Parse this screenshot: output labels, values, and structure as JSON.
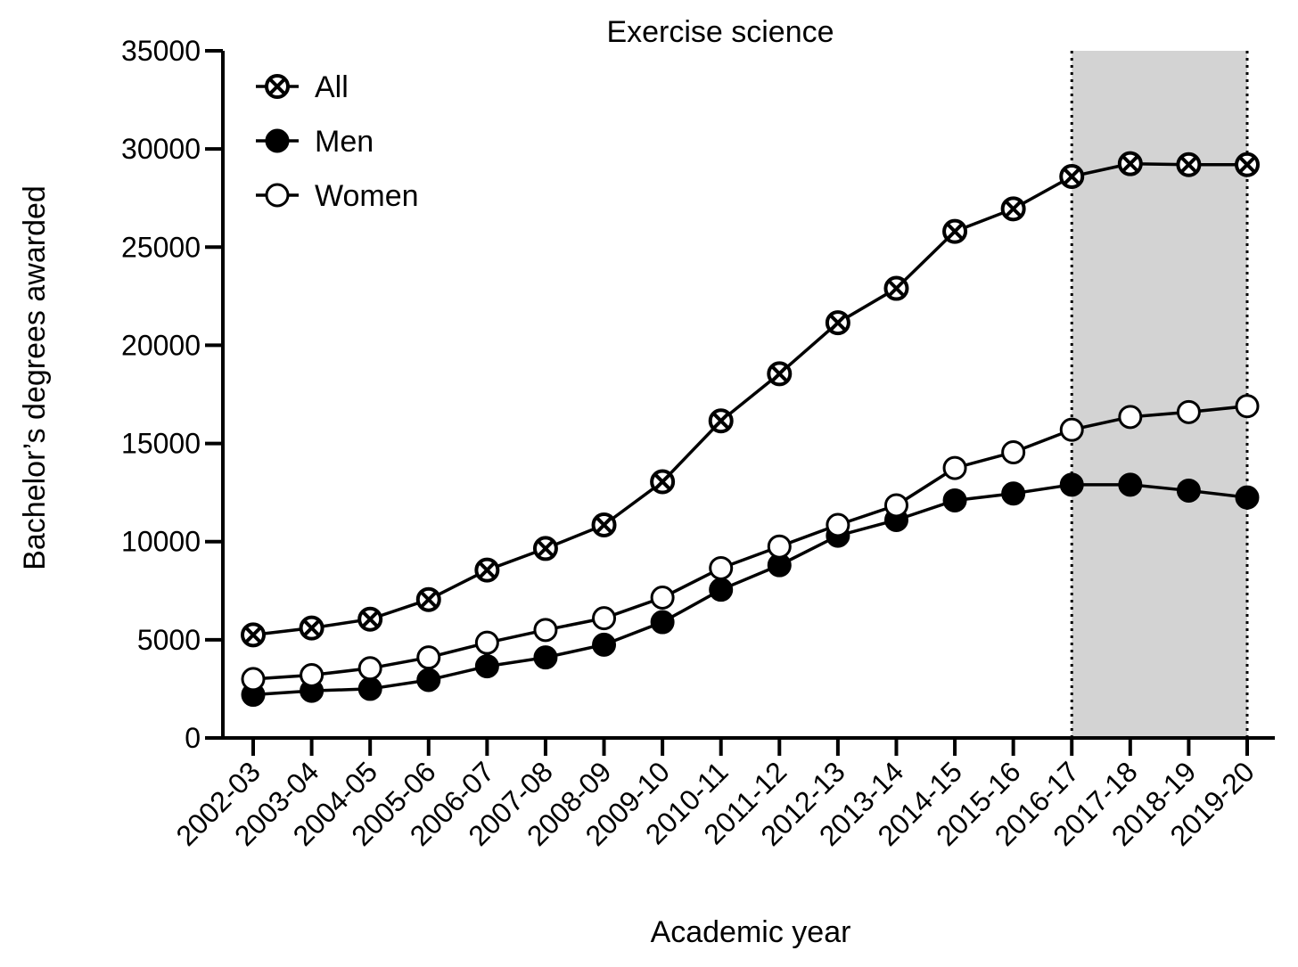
{
  "chart_data": {
    "type": "line",
    "title": "Exercise science",
    "xlabel": "Academic year",
    "ylabel": "Bachelor’s degrees awarded",
    "ylim": [
      0,
      35000
    ],
    "yticks": [
      0,
      5000,
      10000,
      15000,
      20000,
      25000,
      30000,
      35000
    ],
    "categories": [
      "2002-03",
      "2003-04",
      "2004-05",
      "2005-06",
      "2006-07",
      "2007-08",
      "2008-09",
      "2009-10",
      "2010-11",
      "2011-12",
      "2012-13",
      "2013-14",
      "2014-15",
      "2015-16",
      "2016-17",
      "2017-18",
      "2018-19",
      "2019-20"
    ],
    "shaded_region": {
      "from": "2016-17",
      "to": "2019-20",
      "color": "#d3d3d3",
      "border": "dotted"
    },
    "legend_position": "top-left",
    "grid": false,
    "series": [
      {
        "name": "All",
        "marker": "circle-x",
        "values": [
          5250,
          5600,
          6050,
          7050,
          8550,
          9650,
          10850,
          13050,
          16150,
          18550,
          21150,
          22900,
          25800,
          26950,
          28600,
          29250,
          29200,
          29200
        ]
      },
      {
        "name": "Men",
        "marker": "filled-circle",
        "values": [
          2200,
          2400,
          2500,
          2950,
          3650,
          4100,
          4750,
          5900,
          7550,
          8800,
          10300,
          11100,
          12100,
          12450,
          12900,
          12900,
          12600,
          12250
        ]
      },
      {
        "name": "Women",
        "marker": "open-circle",
        "values": [
          3000,
          3200,
          3550,
          4100,
          4850,
          5500,
          6100,
          7150,
          8650,
          9750,
          10850,
          11850,
          13750,
          14550,
          15700,
          16350,
          16600,
          16900
        ]
      }
    ]
  }
}
